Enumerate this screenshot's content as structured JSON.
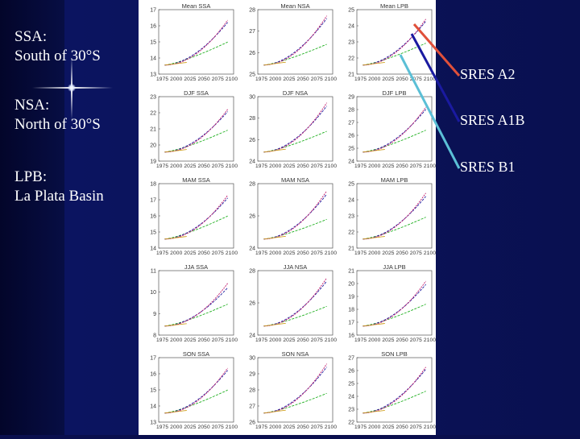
{
  "labels": {
    "ssa": {
      "line1": "SSA:",
      "line2": "South of 30°S"
    },
    "nsa": {
      "line1": "NSA:",
      "line2": "North of 30°S"
    },
    "lpb": {
      "line1": "LPB:",
      "line2": "La Plata Basin"
    }
  },
  "legend": [
    {
      "label": "SRES A2",
      "color": "#e0503a"
    },
    {
      "label": "SRES A1B",
      "color": "#1a1aa0"
    },
    {
      "label": "SRES B1",
      "color": "#5bbfd6"
    }
  ],
  "x_ticks": [
    "1975",
    "2000",
    "2025",
    "2050",
    "2075",
    "2100"
  ],
  "x_tick_text": "1975 2000 2025 2050 2075 2100",
  "series_colors": {
    "A2": "#c0186a",
    "A1B": "#2020a0",
    "B1": "#20b020",
    "obs": "#d0a020"
  },
  "panels": [
    {
      "title": "Mean SSA",
      "yticks": [
        "13",
        "14",
        "15",
        "16",
        "17"
      ],
      "end": {
        "A2": 0.82,
        "A1B": 0.78,
        "B1": 0.42
      }
    },
    {
      "title": "Mean NSA",
      "yticks": [
        "25",
        "26",
        "27",
        "28"
      ],
      "end": {
        "A2": 0.9,
        "A1B": 0.85,
        "B1": 0.38
      }
    },
    {
      "title": "Mean LPB",
      "yticks": [
        "21",
        "22",
        "23",
        "24",
        "25"
      ],
      "end": {
        "A2": 0.84,
        "A1B": 0.8,
        "B1": 0.4
      }
    },
    {
      "title": "DJF SSA",
      "yticks": [
        "19",
        "20",
        "21",
        "22",
        "23"
      ],
      "end": {
        "A2": 0.78,
        "A1B": 0.74,
        "B1": 0.4
      }
    },
    {
      "title": "DJF NSA",
      "yticks": [
        "24",
        "26",
        "28",
        "30"
      ],
      "end": {
        "A2": 0.9,
        "A1B": 0.84,
        "B1": 0.38
      }
    },
    {
      "title": "DJF LPB",
      "yticks": [
        "24",
        "25",
        "26",
        "27",
        "28",
        "29"
      ],
      "end": {
        "A2": 0.82,
        "A1B": 0.78,
        "B1": 0.4
      }
    },
    {
      "title": "MAM SSA",
      "yticks": [
        "14",
        "15",
        "16",
        "17",
        "18"
      ],
      "end": {
        "A2": 0.8,
        "A1B": 0.75,
        "B1": 0.42
      }
    },
    {
      "title": "MAM NSA",
      "yticks": [
        "24",
        "26",
        "28"
      ],
      "end": {
        "A2": 0.88,
        "A1B": 0.82,
        "B1": 0.36
      }
    },
    {
      "title": "MAM LPB",
      "yticks": [
        "21",
        "22",
        "23",
        "24",
        "25"
      ],
      "end": {
        "A2": 0.84,
        "A1B": 0.78,
        "B1": 0.4
      }
    },
    {
      "title": "JJA SSA",
      "yticks": [
        "8",
        "9",
        "10",
        "11"
      ],
      "end": {
        "A2": 0.78,
        "A1B": 0.7,
        "B1": 0.4
      }
    },
    {
      "title": "JJA NSA",
      "yticks": [
        "24",
        "26",
        "28"
      ],
      "end": {
        "A2": 0.88,
        "A1B": 0.82,
        "B1": 0.36
      }
    },
    {
      "title": "JJA LPB",
      "yticks": [
        "16",
        "17",
        "18",
        "19",
        "20",
        "21"
      ],
      "end": {
        "A2": 0.82,
        "A1B": 0.76,
        "B1": 0.4
      }
    },
    {
      "title": "SON SSA",
      "yticks": [
        "13",
        "14",
        "15",
        "16",
        "17"
      ],
      "end": {
        "A2": 0.82,
        "A1B": 0.78,
        "B1": 0.42
      }
    },
    {
      "title": "SON NSA",
      "yticks": [
        "26",
        "27",
        "28",
        "29",
        "30"
      ],
      "end": {
        "A2": 0.9,
        "A1B": 0.84,
        "B1": 0.36
      }
    },
    {
      "title": "SON LPB",
      "yticks": [
        "22",
        "23",
        "24",
        "25",
        "26",
        "27"
      ],
      "end": {
        "A2": 0.84,
        "A1B": 0.8,
        "B1": 0.4
      }
    }
  ]
}
